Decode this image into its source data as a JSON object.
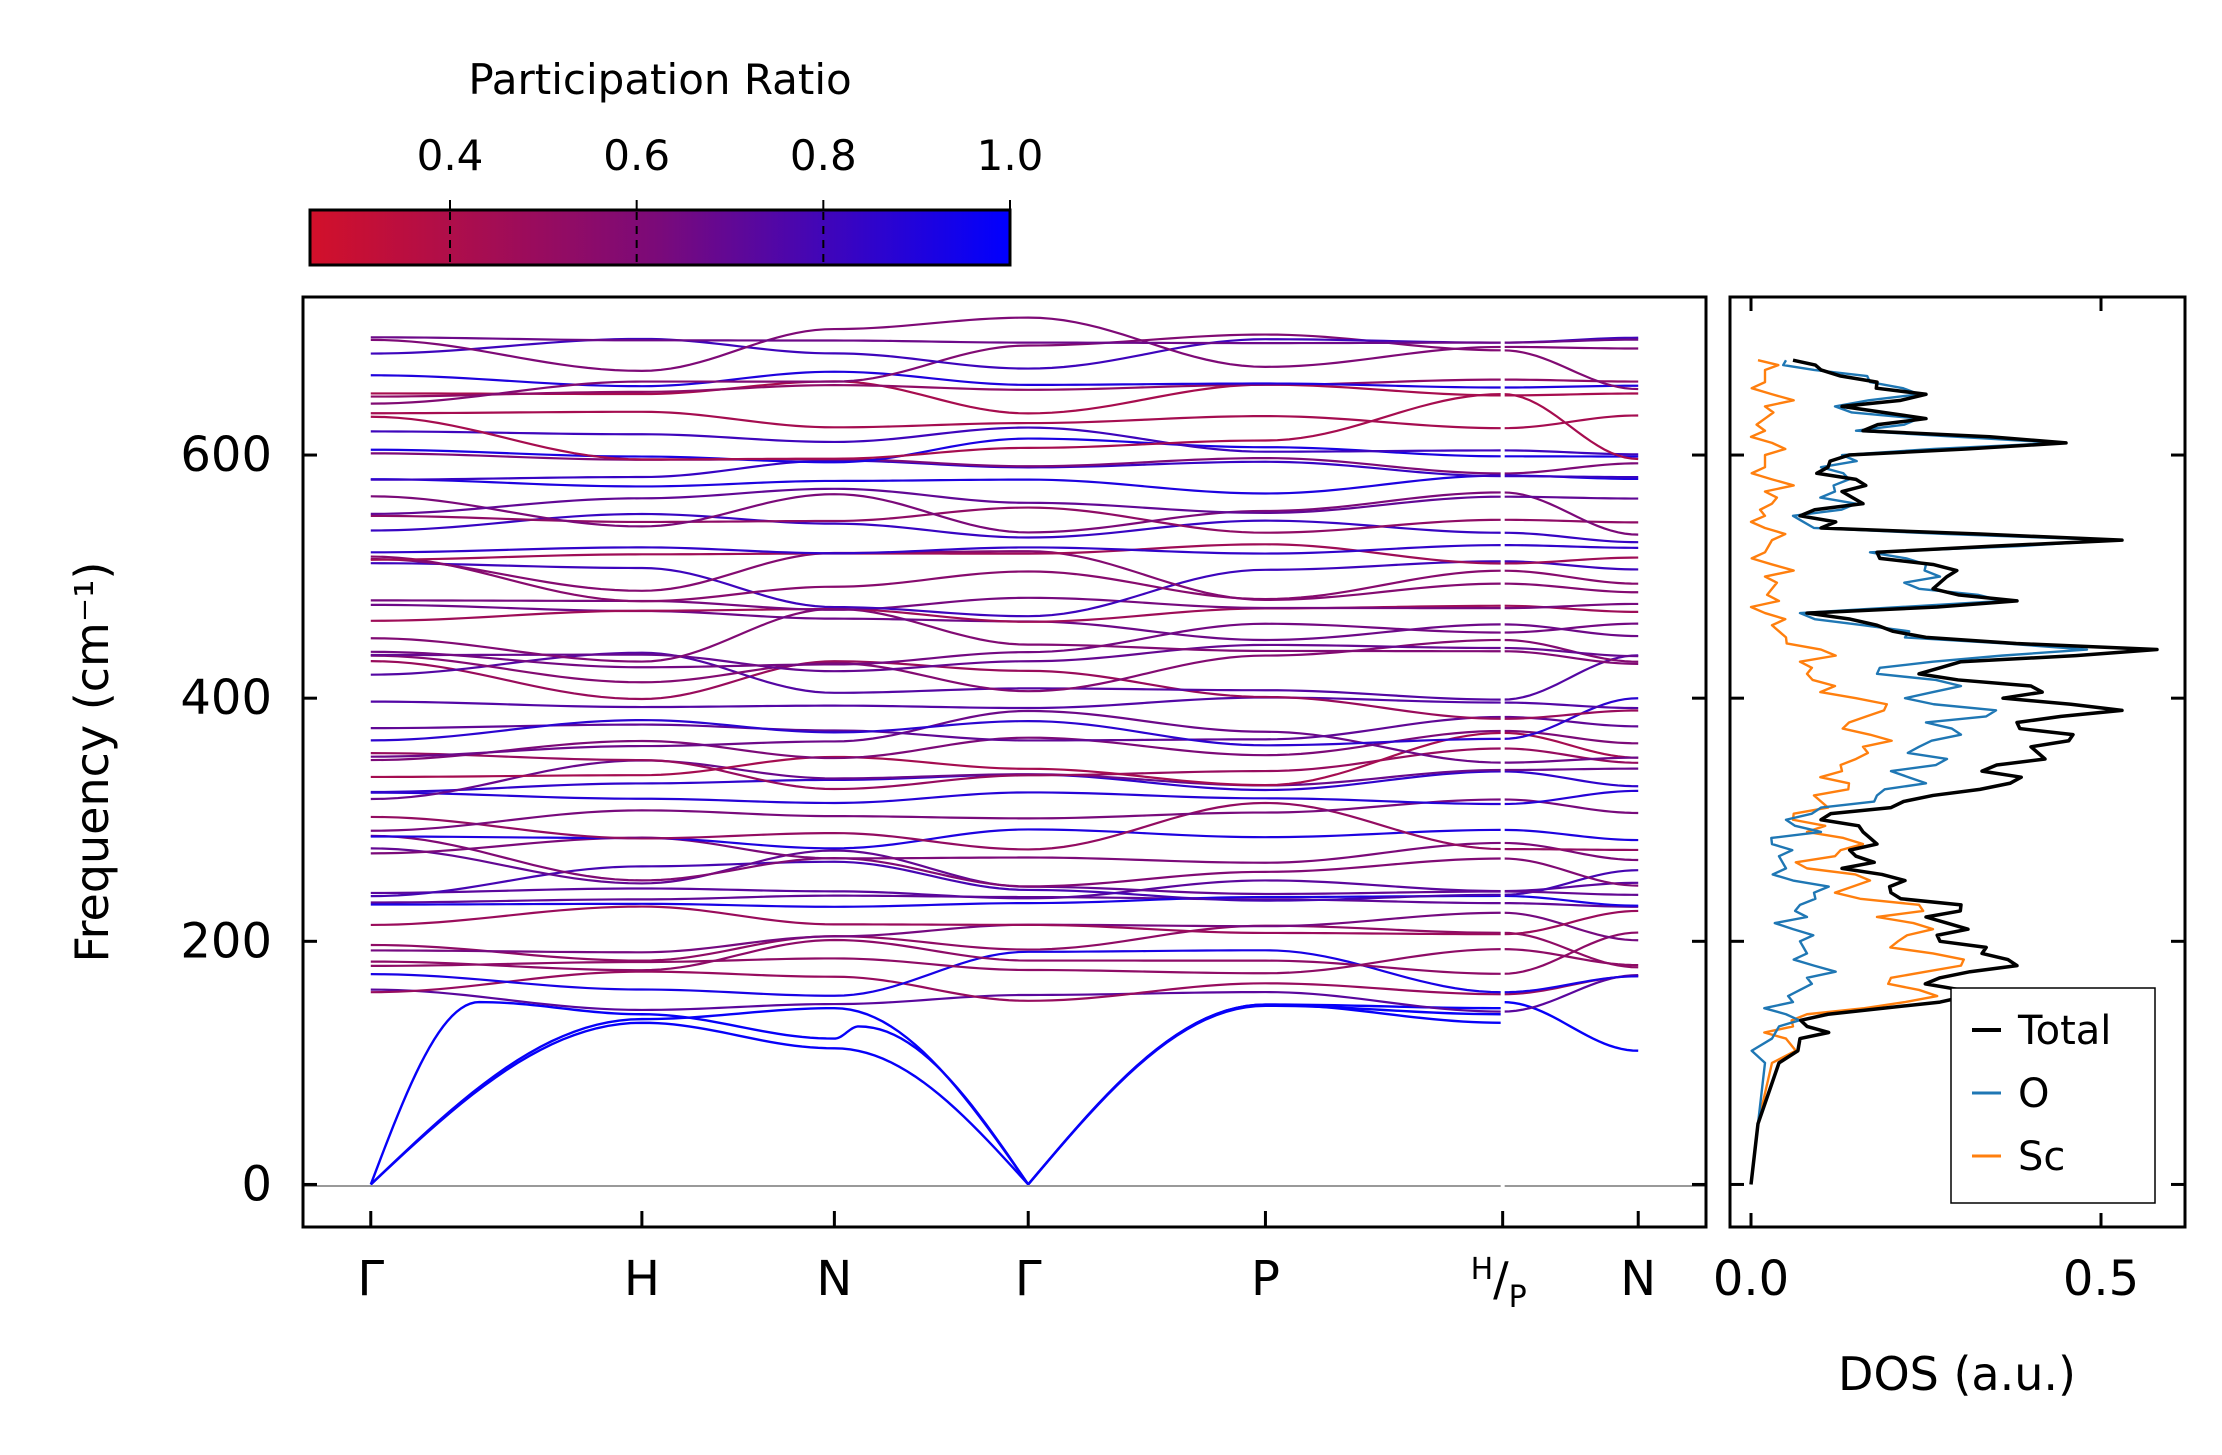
{
  "chart_data": [
    {
      "type": "line",
      "panel": "phonon-dispersion",
      "title": "",
      "xlabel": "",
      "ylabel": "Frequency (cm⁻¹)",
      "ylim": [
        -35,
        730
      ],
      "yticks": [
        0,
        200,
        400,
        600
      ],
      "ytick_labels": [
        "0",
        "200",
        "400",
        "600"
      ],
      "x_ticks": [
        {
          "label": "Γ",
          "pos": 0
        },
        {
          "label": "H",
          "pos": 2.0
        },
        {
          "label": "N",
          "pos": 3.42
        },
        {
          "label": "Γ",
          "pos": 4.85
        },
        {
          "label": "P",
          "pos": 6.6
        },
        {
          "label": "H/P",
          "label_sup": "H",
          "label_sub": "P",
          "pos": 8.35
        },
        {
          "label": "N",
          "pos": 9.35
        }
      ],
      "xlim": [
        -0.5,
        9.85
      ],
      "colormap": {
        "label": "Participation Ratio",
        "range": [
          0.25,
          1.0
        ],
        "ticks": [
          0.4,
          0.6,
          0.8,
          1.0
        ],
        "tick_labels": [
          "0.4",
          "0.6",
          "0.8",
          "1.0"
        ],
        "colors": [
          "#c8102e",
          "#7a0a7a",
          "#0000ff"
        ]
      },
      "acoustic_branches": [
        {
          "x": [
            0,
            0.8,
            2.0,
            3.42,
            3.6,
            4.85,
            6.6,
            8.35,
            8.35,
            9.35
          ],
          "y": [
            0,
            150,
            140,
            120,
            130,
            0,
            148,
            145,
            150,
            110
          ],
          "pr": 0.98
        },
        {
          "x": [
            0,
            2.0,
            3.42,
            4.85,
            6.6,
            8.35
          ],
          "y": [
            0,
            133,
            112,
            0,
            148,
            133
          ],
          "pr": 0.98
        },
        {
          "x": [
            0,
            2.0,
            3.42,
            4.85,
            6.6,
            8.35
          ],
          "y": [
            0,
            136,
            145,
            0,
            147,
            140
          ],
          "pr": 0.98
        }
      ],
      "optical_branch_count": 60,
      "optical_band_range": [
        158,
        700
      ]
    },
    {
      "type": "line",
      "panel": "density-of-states",
      "xlabel": "DOS (a.u.)",
      "ylabel": "",
      "xlim": [
        -0.03,
        0.62
      ],
      "ylim": [
        -35,
        730
      ],
      "xticks": [
        0.0,
        0.5
      ],
      "xtick_labels": [
        "0.0",
        "0.5"
      ],
      "legend_position": "bottom-right",
      "freq": [
        0,
        50,
        100,
        120,
        130,
        140,
        150,
        160,
        170,
        180,
        190,
        200,
        210,
        220,
        230,
        240,
        250,
        260,
        270,
        280,
        290,
        300,
        310,
        320,
        330,
        340,
        350,
        360,
        370,
        380,
        390,
        400,
        410,
        420,
        430,
        440,
        450,
        460,
        470,
        480,
        490,
        500,
        510,
        520,
        530,
        540,
        550,
        560,
        570,
        580,
        590,
        600,
        610,
        620,
        630,
        640,
        650,
        660,
        670,
        678
      ],
      "series": [
        {
          "name": "Total",
          "color": "#000000",
          "values": [
            0.0,
            0.01,
            0.04,
            0.07,
            0.08,
            0.11,
            0.27,
            0.3,
            0.27,
            0.38,
            0.33,
            0.27,
            0.31,
            0.25,
            0.3,
            0.2,
            0.22,
            0.13,
            0.15,
            0.18,
            0.16,
            0.1,
            0.2,
            0.26,
            0.37,
            0.33,
            0.42,
            0.4,
            0.46,
            0.38,
            0.53,
            0.36,
            0.4,
            0.24,
            0.3,
            0.58,
            0.25,
            0.18,
            0.08,
            0.38,
            0.26,
            0.28,
            0.26,
            0.18,
            0.53,
            0.1,
            0.07,
            0.16,
            0.13,
            0.15,
            0.11,
            0.14,
            0.45,
            0.16,
            0.25,
            0.13,
            0.25,
            0.18,
            0.1,
            0.06
          ]
        },
        {
          "name": "O",
          "color": "#1f77b4",
          "values": [
            0.0,
            0.01,
            0.02,
            0.03,
            0.04,
            0.05,
            0.06,
            0.07,
            0.08,
            0.09,
            0.08,
            0.07,
            0.06,
            0.08,
            0.07,
            0.09,
            0.06,
            0.05,
            0.04,
            0.03,
            0.1,
            0.05,
            0.1,
            0.18,
            0.25,
            0.2,
            0.28,
            0.24,
            0.3,
            0.25,
            0.35,
            0.22,
            0.3,
            0.18,
            0.26,
            0.48,
            0.22,
            0.16,
            0.07,
            0.36,
            0.24,
            0.27,
            0.25,
            0.17,
            0.52,
            0.09,
            0.06,
            0.15,
            0.12,
            0.14,
            0.1,
            0.13,
            0.44,
            0.15,
            0.24,
            0.12,
            0.24,
            0.17,
            0.09,
            0.05
          ]
        },
        {
          "name": "Sc",
          "color": "#ff7f0e",
          "values": [
            0.0,
            0.01,
            0.03,
            0.05,
            0.06,
            0.08,
            0.22,
            0.24,
            0.2,
            0.3,
            0.26,
            0.21,
            0.26,
            0.18,
            0.24,
            0.12,
            0.17,
            0.08,
            0.12,
            0.16,
            0.08,
            0.06,
            0.11,
            0.09,
            0.14,
            0.13,
            0.15,
            0.16,
            0.17,
            0.14,
            0.19,
            0.15,
            0.12,
            0.08,
            0.07,
            0.1,
            0.05,
            0.03,
            0.02,
            0.04,
            0.03,
            0.02,
            0.03,
            0.02,
            0.03,
            0.02,
            0.02,
            0.03,
            0.02,
            0.03,
            0.02,
            0.02,
            0.03,
            0.02,
            0.02,
            0.02,
            0.03,
            0.02,
            0.02,
            0.01
          ]
        }
      ]
    }
  ]
}
